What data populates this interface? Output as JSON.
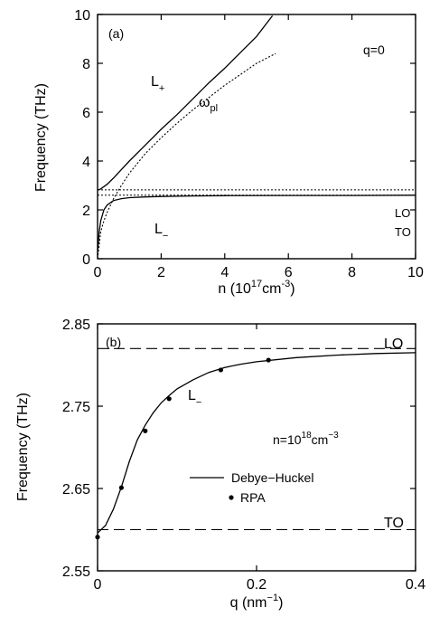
{
  "chart_data": [
    {
      "type": "line",
      "panel_label": "(a)",
      "xlabel": "n (10",
      "xlabel_sup": "17",
      "xlabel_mid": "cm",
      "xlabel_sup2": "-3",
      "xlabel_end": ")",
      "ylabel": "Frequency (THz)",
      "xlim": [
        0,
        10
      ],
      "ylim": [
        0,
        10
      ],
      "xticks": [
        "0",
        "2",
        "4",
        "6",
        "8",
        "10"
      ],
      "yticks": [
        "0",
        "2",
        "4",
        "6",
        "8",
        "10"
      ],
      "annotations": {
        "q": "q=0",
        "L_plus": "L",
        "L_plus_sub": "+",
        "L_minus": "L",
        "L_minus_sub": "−",
        "omega": "ω",
        "omega_sub": "pl",
        "LO": "LO",
        "TO": "TO"
      },
      "series": [
        {
          "x": [
            0,
            0.05,
            0.1,
            0.2,
            0.3,
            0.5,
            0.75,
            1,
            1.5,
            2,
            2.5,
            3,
            3.5,
            4,
            4.5,
            5,
            5.5
          ],
          "y": [
            2.82,
            2.83,
            2.86,
            2.95,
            3.05,
            3.3,
            3.65,
            4.0,
            4.65,
            5.3,
            5.9,
            6.55,
            7.2,
            7.8,
            8.45,
            9.1,
            9.95
          ]
        },
        {
          "x": [
            0,
            0.05,
            0.1,
            0.2,
            0.3,
            0.5,
            0.75,
            1,
            1.5,
            2,
            3,
            4,
            6,
            8,
            10
          ],
          "y": [
            0.25,
            1.1,
            1.55,
            2.0,
            2.2,
            2.38,
            2.46,
            2.5,
            2.53,
            2.55,
            2.57,
            2.58,
            2.59,
            2.59,
            2.6
          ]
        },
        {
          "x": [
            0,
            0.1,
            0.2,
            0.3,
            0.5,
            0.75,
            1,
            1.5,
            2,
            2.5,
            3,
            3.5,
            4,
            4.5,
            5,
            5.6
          ],
          "y": [
            0,
            1.1,
            1.55,
            1.9,
            2.45,
            3.0,
            3.5,
            4.3,
            4.95,
            5.55,
            6.1,
            6.6,
            7.1,
            7.55,
            8.0,
            8.4
          ]
        },
        {
          "x": [
            0,
            10
          ],
          "y": [
            2.82,
            2.82
          ]
        },
        {
          "x": [
            0,
            10
          ],
          "y": [
            2.6,
            2.6
          ]
        }
      ]
    },
    {
      "type": "line",
      "panel_label": "(b)",
      "xlabel": "q (nm",
      "xlabel_sup": "−1",
      "xlabel_end": ")",
      "ylabel": "Frequency (THz)",
      "xlim": [
        0,
        0.4
      ],
      "ylim": [
        2.55,
        2.85
      ],
      "xticks": [
        "0",
        "0.2",
        "0.4"
      ],
      "yticks": [
        "2.55",
        "2.65",
        "2.75",
        "2.85"
      ],
      "annotations": {
        "L_minus": "L",
        "L_minus_sub": "−",
        "n_text": "n=10",
        "n_sup": "18",
        "n_unit": "cm",
        "n_unit_sup": "−3",
        "LO": "LO",
        "TO": "TO"
      },
      "legend": {
        "line": "Debye−Huckel",
        "points": "RPA"
      },
      "series": [
        {
          "name": "Debye−Huckel",
          "x": [
            0,
            0.01,
            0.02,
            0.03,
            0.04,
            0.05,
            0.06,
            0.07,
            0.08,
            0.09,
            0.1,
            0.12,
            0.14,
            0.16,
            0.18,
            0.2,
            0.25,
            0.3,
            0.35,
            0.4
          ],
          "y": [
            2.596,
            2.605,
            2.625,
            2.652,
            2.683,
            2.709,
            2.727,
            2.742,
            2.754,
            2.763,
            2.771,
            2.782,
            2.791,
            2.797,
            2.801,
            2.804,
            2.809,
            2.812,
            2.814,
            2.815
          ]
        },
        {
          "name": "RPA",
          "x": [
            0.0,
            0.03,
            0.06,
            0.09,
            0.155,
            0.215
          ],
          "y": [
            2.591,
            2.651,
            2.72,
            2.759,
            2.794,
            2.806
          ]
        },
        {
          "x": [
            0,
            0.4
          ],
          "y": [
            2.82,
            2.82
          ]
        },
        {
          "x": [
            0,
            0.4
          ],
          "y": [
            2.6,
            2.6
          ]
        }
      ]
    }
  ]
}
